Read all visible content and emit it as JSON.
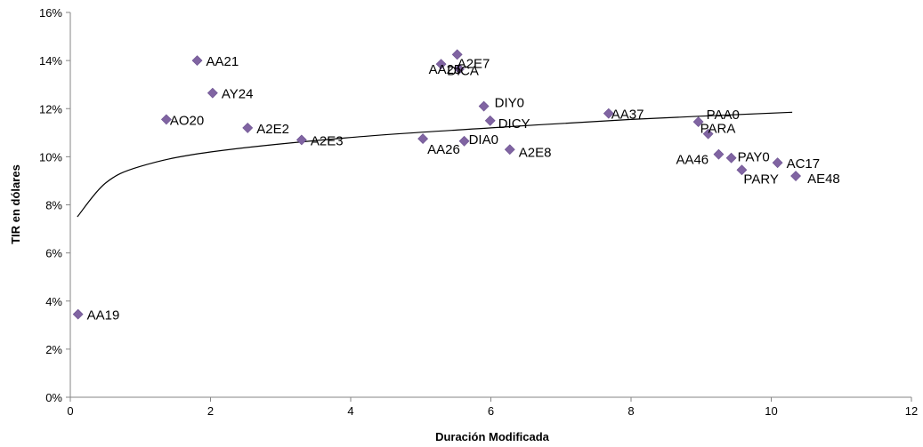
{
  "chart_data": {
    "type": "scatter",
    "title": "",
    "xlabel": "Duración Modificada",
    "ylabel": "TIR en dólares",
    "xlim": [
      0,
      12
    ],
    "ylim": [
      0,
      0.16
    ],
    "x_ticks": [
      0,
      2,
      4,
      6,
      8,
      10,
      12
    ],
    "y_ticks": [
      0,
      0.02,
      0.04,
      0.06,
      0.08,
      0.1,
      0.12,
      0.14,
      0.16
    ],
    "x_tick_labels": [
      "0",
      "2",
      "4",
      "6",
      "8",
      "10",
      "12"
    ],
    "y_tick_labels": [
      "0%",
      "2%",
      "4%",
      "6%",
      "8%",
      "10%",
      "12%",
      "14%",
      "16%"
    ],
    "grid": false,
    "legend": "none",
    "marker_color": "#8064a2",
    "trendline": {
      "type": "logarithmic",
      "color": "#000000",
      "x_range": [
        0.1,
        10.3
      ],
      "points": [
        [
          0.1,
          0.075
        ],
        [
          0.5,
          0.089
        ],
        [
          1,
          0.096
        ],
        [
          2,
          0.102
        ],
        [
          4,
          0.108
        ],
        [
          6,
          0.112
        ],
        [
          8,
          0.1155
        ],
        [
          10.3,
          0.1185
        ]
      ]
    },
    "points": [
      {
        "label": "AA19",
        "x": 0.11,
        "y": 0.0345
      },
      {
        "label": "AO20",
        "x": 1.37,
        "y": 0.1155
      },
      {
        "label": "AA21",
        "x": 1.81,
        "y": 0.14
      },
      {
        "label": "AY24",
        "x": 2.03,
        "y": 0.1265
      },
      {
        "label": "A2E2",
        "x": 2.53,
        "y": 0.112
      },
      {
        "label": "A2E3",
        "x": 3.3,
        "y": 0.107
      },
      {
        "label": "AA26",
        "x": 5.03,
        "y": 0.1075
      },
      {
        "label": "AA25",
        "x": 5.29,
        "y": 0.1385
      },
      {
        "label": "A2E7",
        "x": 5.52,
        "y": 0.1425
      },
      {
        "label": "DICA",
        "x": 5.55,
        "y": 0.1365
      },
      {
        "label": "DIY0",
        "x": 5.9,
        "y": 0.121
      },
      {
        "label": "DICY",
        "x": 5.99,
        "y": 0.115
      },
      {
        "label": "DIA0",
        "x": 5.62,
        "y": 0.1065
      },
      {
        "label": "A2E8",
        "x": 6.27,
        "y": 0.103
      },
      {
        "label": "AA37",
        "x": 7.68,
        "y": 0.118
      },
      {
        "label": "PAA0",
        "x": 8.96,
        "y": 0.1145
      },
      {
        "label": "PARA",
        "x": 9.1,
        "y": 0.1095
      },
      {
        "label": "AA46",
        "x": 9.25,
        "y": 0.101
      },
      {
        "label": "PAY0",
        "x": 9.43,
        "y": 0.0995
      },
      {
        "label": "PARY",
        "x": 9.58,
        "y": 0.0945
      },
      {
        "label": "AC17",
        "x": 10.09,
        "y": 0.0975
      },
      {
        "label": "AE48",
        "x": 10.35,
        "y": 0.092
      }
    ]
  }
}
